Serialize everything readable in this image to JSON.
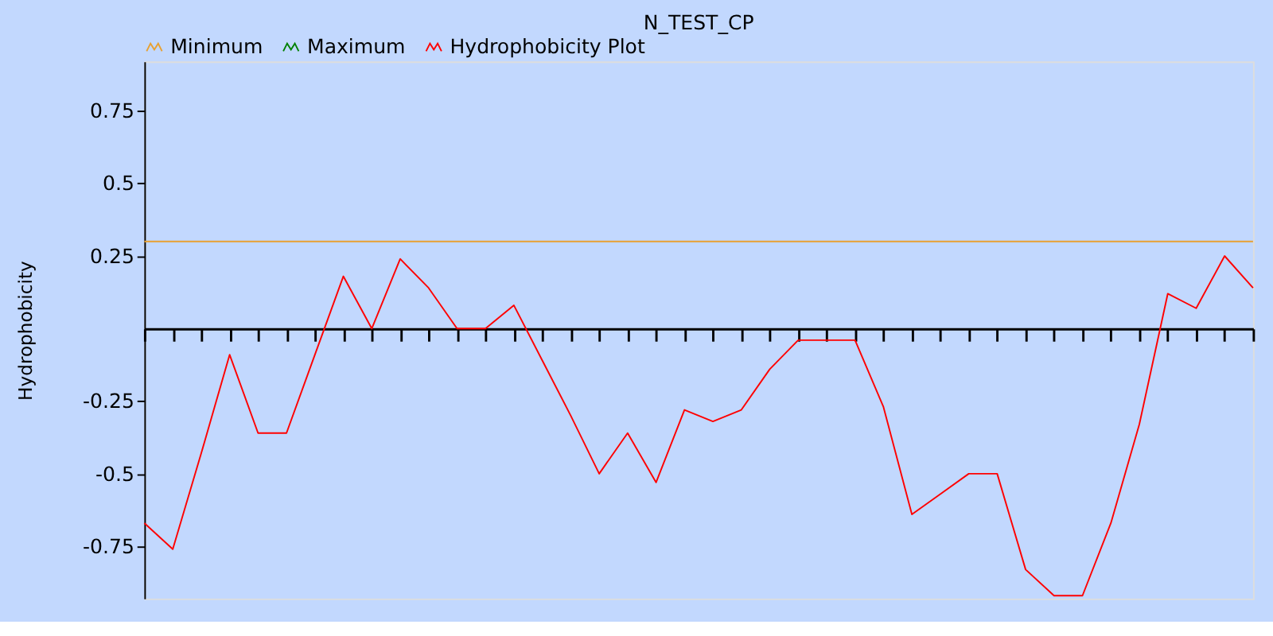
{
  "chart_data": {
    "type": "line",
    "title": "N_TEST_CP",
    "ylabel": "Hydrophobicity",
    "categories": [
      null,
      null,
      null,
      null,
      null,
      null,
      null,
      null,
      null,
      null,
      null,
      null,
      null,
      null,
      null,
      null,
      null,
      null,
      null,
      null,
      null,
      null,
      null,
      null,
      null,
      null,
      null,
      null,
      null,
      null,
      null,
      null,
      null,
      null,
      null,
      null,
      null,
      null,
      null,
      null
    ],
    "series": [
      {
        "name": "Minimum",
        "color": "#e8a030",
        "values": [
          0.3,
          0.3,
          0.3,
          0.3,
          0.3,
          0.3,
          0.3,
          0.3,
          0.3,
          0.3,
          0.3,
          0.3,
          0.3,
          0.3,
          0.3,
          0.3,
          0.3,
          0.3,
          0.3,
          0.3,
          0.3,
          0.3,
          0.3,
          0.3,
          0.3,
          0.3,
          0.3,
          0.3,
          0.3,
          0.3,
          0.3,
          0.3,
          0.3,
          0.3,
          0.3,
          0.3,
          0.3,
          0.3,
          0.3,
          0.3
        ]
      },
      {
        "name": "Maximum",
        "color": "#008000",
        "values": [
          null,
          null,
          null,
          null,
          null,
          null,
          null,
          null,
          null,
          null,
          null,
          null,
          null,
          null,
          null,
          null,
          null,
          null,
          null,
          null,
          null,
          null,
          null,
          null,
          null,
          null,
          null,
          null,
          null,
          null,
          null,
          null,
          null,
          null,
          null,
          null,
          null,
          null,
          null,
          null
        ]
      },
      {
        "name": "Hydrophobicity Plot",
        "color": "#ff0000",
        "values": [
          -0.67,
          -0.76,
          -0.43,
          -0.09,
          -0.36,
          -0.36,
          -0.09,
          0.18,
          0.0,
          0.24,
          0.14,
          0.0,
          0.0,
          0.08,
          -0.11,
          -0.3,
          -0.5,
          -0.36,
          -0.53,
          -0.28,
          -0.32,
          -0.28,
          -0.14,
          -0.04,
          -0.04,
          -0.04,
          -0.27,
          -0.64,
          -0.57,
          -0.5,
          -0.5,
          -0.83,
          -0.92,
          -0.92,
          -0.67,
          -0.33,
          0.12,
          0.07,
          0.25,
          0.14
        ]
      }
    ],
    "ylim": [
      -0.93,
      0.92
    ],
    "yticks": [
      -0.75,
      -0.5,
      -0.25,
      0.25,
      0.5,
      0.75
    ],
    "grid": false,
    "legend": "top",
    "marker": "none",
    "line_style": "solid"
  }
}
